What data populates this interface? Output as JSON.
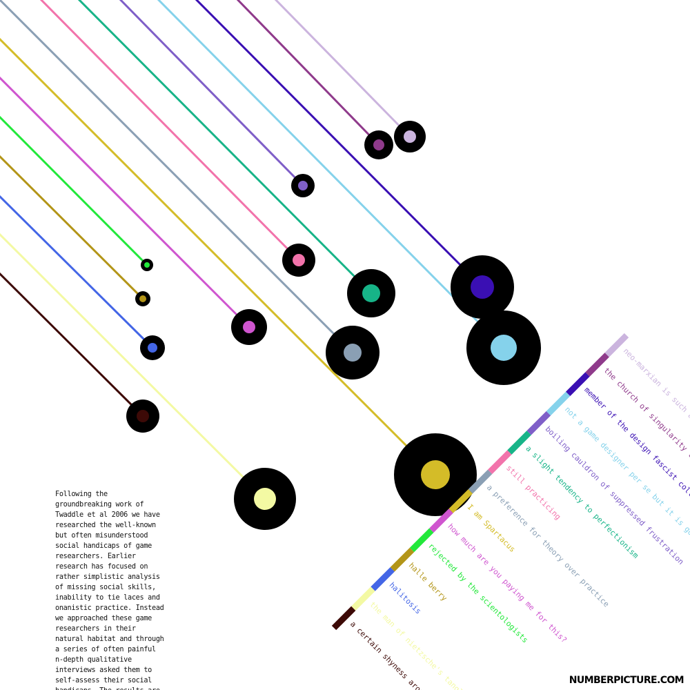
{
  "page": {
    "body_text": "Following the groundbreaking work of Twaddle et al 2006 we have researched the well-known but often misunderstood social handicaps of game researchers. Earlier research has focused on rather simplistic analysis of missing social skills, inability to tie laces and onanistic practice. Instead we approached these game researchers in their natural habitat and through a series of often painful n-depth qualitative interviews asked them to self-assess their social handicaps. The results are shown here.",
    "brand": "NUMBERPICTURE.COM"
  },
  "chart_data": {
    "type": "scatter",
    "description_kind": "bubble",
    "series": [
      {
        "label": "a certain shyness around",
        "color": "#3d0a07",
        "dot_radius": 9,
        "outer_radius": 24
      },
      {
        "label": "the man of nietzsche's tangled words",
        "color": "#f3f9a3",
        "dot_radius": 16,
        "outer_radius": 45
      },
      {
        "label": "halitosis",
        "color": "#4466e6",
        "dot_radius": 7,
        "outer_radius": 18
      },
      {
        "label": "halle berry",
        "color": "#b39518",
        "dot_radius": 5,
        "outer_radius": 11
      },
      {
        "label": "rejected by the scientologists",
        "color": "#22e83a",
        "dot_radius": 4,
        "outer_radius": 9
      },
      {
        "label": "how much are you paying me for this?",
        "color": "#cf55cf",
        "dot_radius": 9,
        "outer_radius": 26
      },
      {
        "label": "I am Spartacus",
        "color": "#d4bc28",
        "dot_radius": 21,
        "outer_radius": 60
      },
      {
        "label": "a preference for theory over practice",
        "color": "#8a9fb4",
        "dot_radius": 13,
        "outer_radius": 39
      },
      {
        "label": "still practicing",
        "color": "#f273ab",
        "dot_radius": 9,
        "outer_radius": 24
      },
      {
        "label": "a slight tendency to perfectionism",
        "color": "#17b488",
        "dot_radius": 13,
        "outer_radius": 35
      },
      {
        "label": "boiling cauldron of suppressed frustration",
        "color": "#7f5fc8",
        "dot_radius": 7,
        "outer_radius": 17
      },
      {
        "label": "not a game designer per se but it is good for my career",
        "color": "#85d2eb",
        "dot_radius": 19,
        "outer_radius": 54
      },
      {
        "label": "member of the design fascist collective",
        "color": "#3a0fb3",
        "dot_radius": 17,
        "outer_radius": 46
      },
      {
        "label": "the church of singularity told me",
        "color": "#8f3a8b",
        "dot_radius": 8,
        "outer_radius": 21
      },
      {
        "label": "neo-marxian is such a simple word",
        "color": "#cbb4de",
        "dot_radius": 9,
        "outer_radius": 23
      }
    ]
  }
}
